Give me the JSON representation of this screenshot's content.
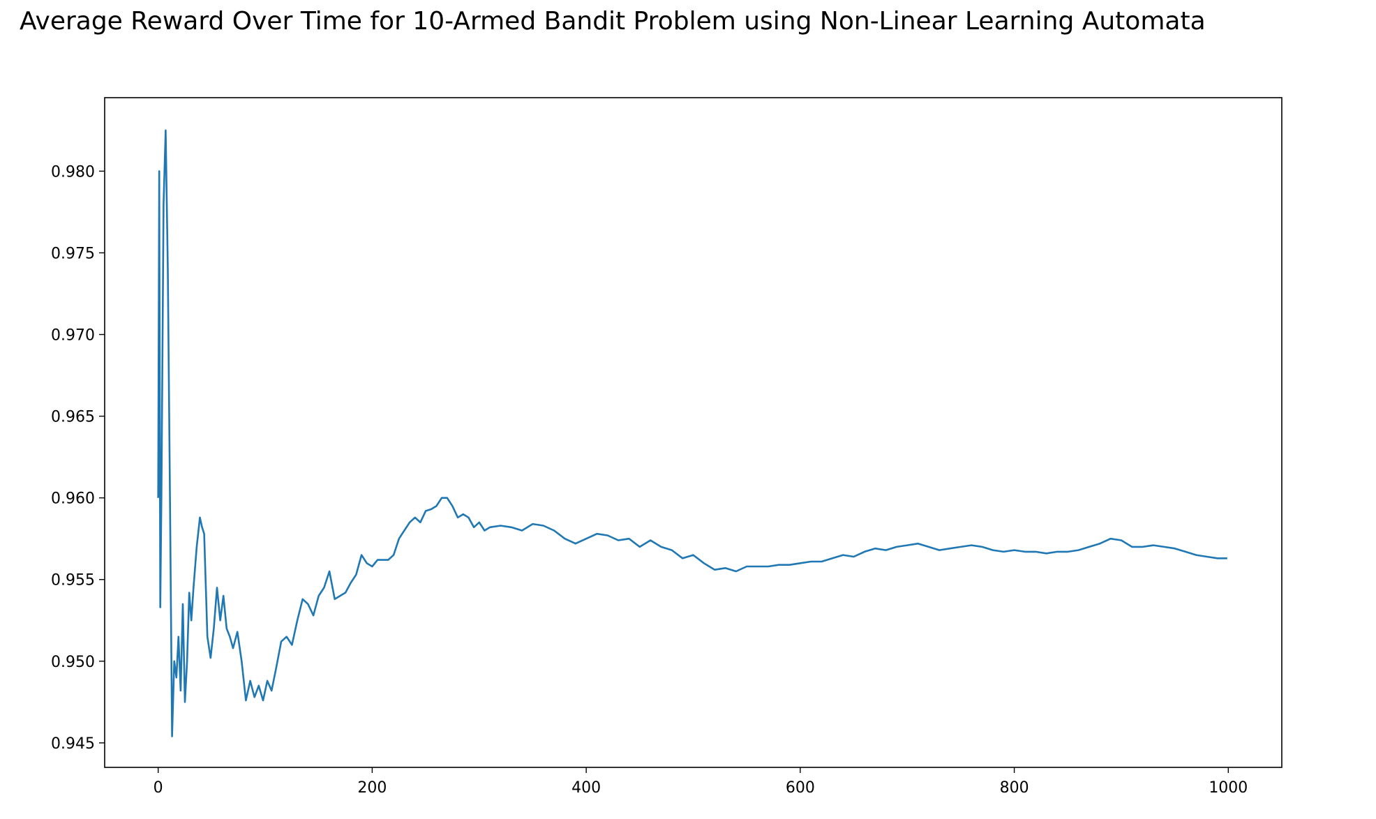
{
  "chart_data": {
    "type": "line",
    "title": "Average Reward Over Time for 10-Armed Bandit Problem using Non-Linear Learning Automata",
    "xlabel": "",
    "ylabel": "",
    "xlim": [
      -50,
      1050
    ],
    "ylim": [
      0.9435,
      0.9845
    ],
    "x_ticks": [
      0,
      200,
      400,
      600,
      800,
      1000
    ],
    "x_tick_labels": [
      "0",
      "200",
      "400",
      "600",
      "800",
      "1000"
    ],
    "y_ticks": [
      0.945,
      0.95,
      0.955,
      0.96,
      0.965,
      0.97,
      0.975,
      0.98
    ],
    "y_tick_labels": [
      "0.945",
      "0.950",
      "0.955",
      "0.960",
      "0.965",
      "0.970",
      "0.975",
      "0.980"
    ],
    "grid": false,
    "legend": "none",
    "colors": {
      "line": "#1f77b4",
      "axes": "#000000",
      "background": "#ffffff"
    },
    "series": [
      {
        "points": [
          [
            0,
            0.96
          ],
          [
            1,
            0.98
          ],
          [
            2,
            0.9533
          ],
          [
            3,
            0.96
          ],
          [
            5,
            0.978
          ],
          [
            7,
            0.9825
          ],
          [
            9,
            0.974
          ],
          [
            11,
            0.96
          ],
          [
            13,
            0.9454
          ],
          [
            15,
            0.95
          ],
          [
            17,
            0.949
          ],
          [
            19,
            0.9515
          ],
          [
            21,
            0.9482
          ],
          [
            23,
            0.9535
          ],
          [
            25,
            0.9475
          ],
          [
            27,
            0.95
          ],
          [
            29,
            0.9542
          ],
          [
            31,
            0.9525
          ],
          [
            33,
            0.9545
          ],
          [
            36,
            0.957
          ],
          [
            39,
            0.9588
          ],
          [
            41,
            0.9582
          ],
          [
            43,
            0.9578
          ],
          [
            46,
            0.9515
          ],
          [
            49,
            0.9502
          ],
          [
            52,
            0.952
          ],
          [
            55,
            0.9545
          ],
          [
            58,
            0.9525
          ],
          [
            61,
            0.954
          ],
          [
            64,
            0.952
          ],
          [
            67,
            0.9515
          ],
          [
            70,
            0.9508
          ],
          [
            74,
            0.9518
          ],
          [
            78,
            0.95
          ],
          [
            82,
            0.9476
          ],
          [
            86,
            0.9488
          ],
          [
            90,
            0.9478
          ],
          [
            94,
            0.9485
          ],
          [
            98,
            0.9476
          ],
          [
            102,
            0.9488
          ],
          [
            106,
            0.9482
          ],
          [
            110,
            0.9495
          ],
          [
            115,
            0.9512
          ],
          [
            120,
            0.9515
          ],
          [
            125,
            0.951
          ],
          [
            130,
            0.9525
          ],
          [
            135,
            0.9538
          ],
          [
            140,
            0.9535
          ],
          [
            145,
            0.9528
          ],
          [
            150,
            0.954
          ],
          [
            155,
            0.9545
          ],
          [
            160,
            0.9555
          ],
          [
            165,
            0.9538
          ],
          [
            170,
            0.954
          ],
          [
            175,
            0.9542
          ],
          [
            180,
            0.9548
          ],
          [
            185,
            0.9553
          ],
          [
            190,
            0.9565
          ],
          [
            195,
            0.956
          ],
          [
            200,
            0.9558
          ],
          [
            205,
            0.9562
          ],
          [
            210,
            0.9562
          ],
          [
            215,
            0.9562
          ],
          [
            220,
            0.9565
          ],
          [
            225,
            0.9575
          ],
          [
            230,
            0.958
          ],
          [
            235,
            0.9585
          ],
          [
            240,
            0.9588
          ],
          [
            245,
            0.9585
          ],
          [
            250,
            0.9592
          ],
          [
            255,
            0.9593
          ],
          [
            260,
            0.9595
          ],
          [
            265,
            0.96
          ],
          [
            270,
            0.96
          ],
          [
            275,
            0.9595
          ],
          [
            280,
            0.9588
          ],
          [
            285,
            0.959
          ],
          [
            290,
            0.9588
          ],
          [
            295,
            0.9582
          ],
          [
            300,
            0.9585
          ],
          [
            305,
            0.958
          ],
          [
            310,
            0.9582
          ],
          [
            320,
            0.9583
          ],
          [
            330,
            0.9582
          ],
          [
            340,
            0.958
          ],
          [
            350,
            0.9584
          ],
          [
            360,
            0.9583
          ],
          [
            370,
            0.958
          ],
          [
            380,
            0.9575
          ],
          [
            390,
            0.9572
          ],
          [
            400,
            0.9575
          ],
          [
            410,
            0.9578
          ],
          [
            420,
            0.9577
          ],
          [
            430,
            0.9574
          ],
          [
            440,
            0.9575
          ],
          [
            450,
            0.957
          ],
          [
            460,
            0.9574
          ],
          [
            470,
            0.957
          ],
          [
            480,
            0.9568
          ],
          [
            490,
            0.9563
          ],
          [
            500,
            0.9565
          ],
          [
            510,
            0.956
          ],
          [
            520,
            0.9556
          ],
          [
            530,
            0.9557
          ],
          [
            540,
            0.9555
          ],
          [
            550,
            0.9558
          ],
          [
            560,
            0.9558
          ],
          [
            570,
            0.9558
          ],
          [
            580,
            0.9559
          ],
          [
            590,
            0.9559
          ],
          [
            600,
            0.956
          ],
          [
            610,
            0.9561
          ],
          [
            620,
            0.9561
          ],
          [
            630,
            0.9563
          ],
          [
            640,
            0.9565
          ],
          [
            650,
            0.9564
          ],
          [
            660,
            0.9567
          ],
          [
            670,
            0.9569
          ],
          [
            680,
            0.9568
          ],
          [
            690,
            0.957
          ],
          [
            700,
            0.9571
          ],
          [
            710,
            0.9572
          ],
          [
            720,
            0.957
          ],
          [
            730,
            0.9568
          ],
          [
            740,
            0.9569
          ],
          [
            750,
            0.957
          ],
          [
            760,
            0.9571
          ],
          [
            770,
            0.957
          ],
          [
            780,
            0.9568
          ],
          [
            790,
            0.9567
          ],
          [
            800,
            0.9568
          ],
          [
            810,
            0.9567
          ],
          [
            820,
            0.9567
          ],
          [
            830,
            0.9566
          ],
          [
            840,
            0.9567
          ],
          [
            850,
            0.9567
          ],
          [
            860,
            0.9568
          ],
          [
            870,
            0.957
          ],
          [
            880,
            0.9572
          ],
          [
            890,
            0.9575
          ],
          [
            900,
            0.9574
          ],
          [
            910,
            0.957
          ],
          [
            920,
            0.957
          ],
          [
            930,
            0.9571
          ],
          [
            940,
            0.957
          ],
          [
            950,
            0.9569
          ],
          [
            960,
            0.9567
          ],
          [
            970,
            0.9565
          ],
          [
            980,
            0.9564
          ],
          [
            990,
            0.9563
          ],
          [
            999,
            0.9563
          ]
        ]
      }
    ]
  }
}
